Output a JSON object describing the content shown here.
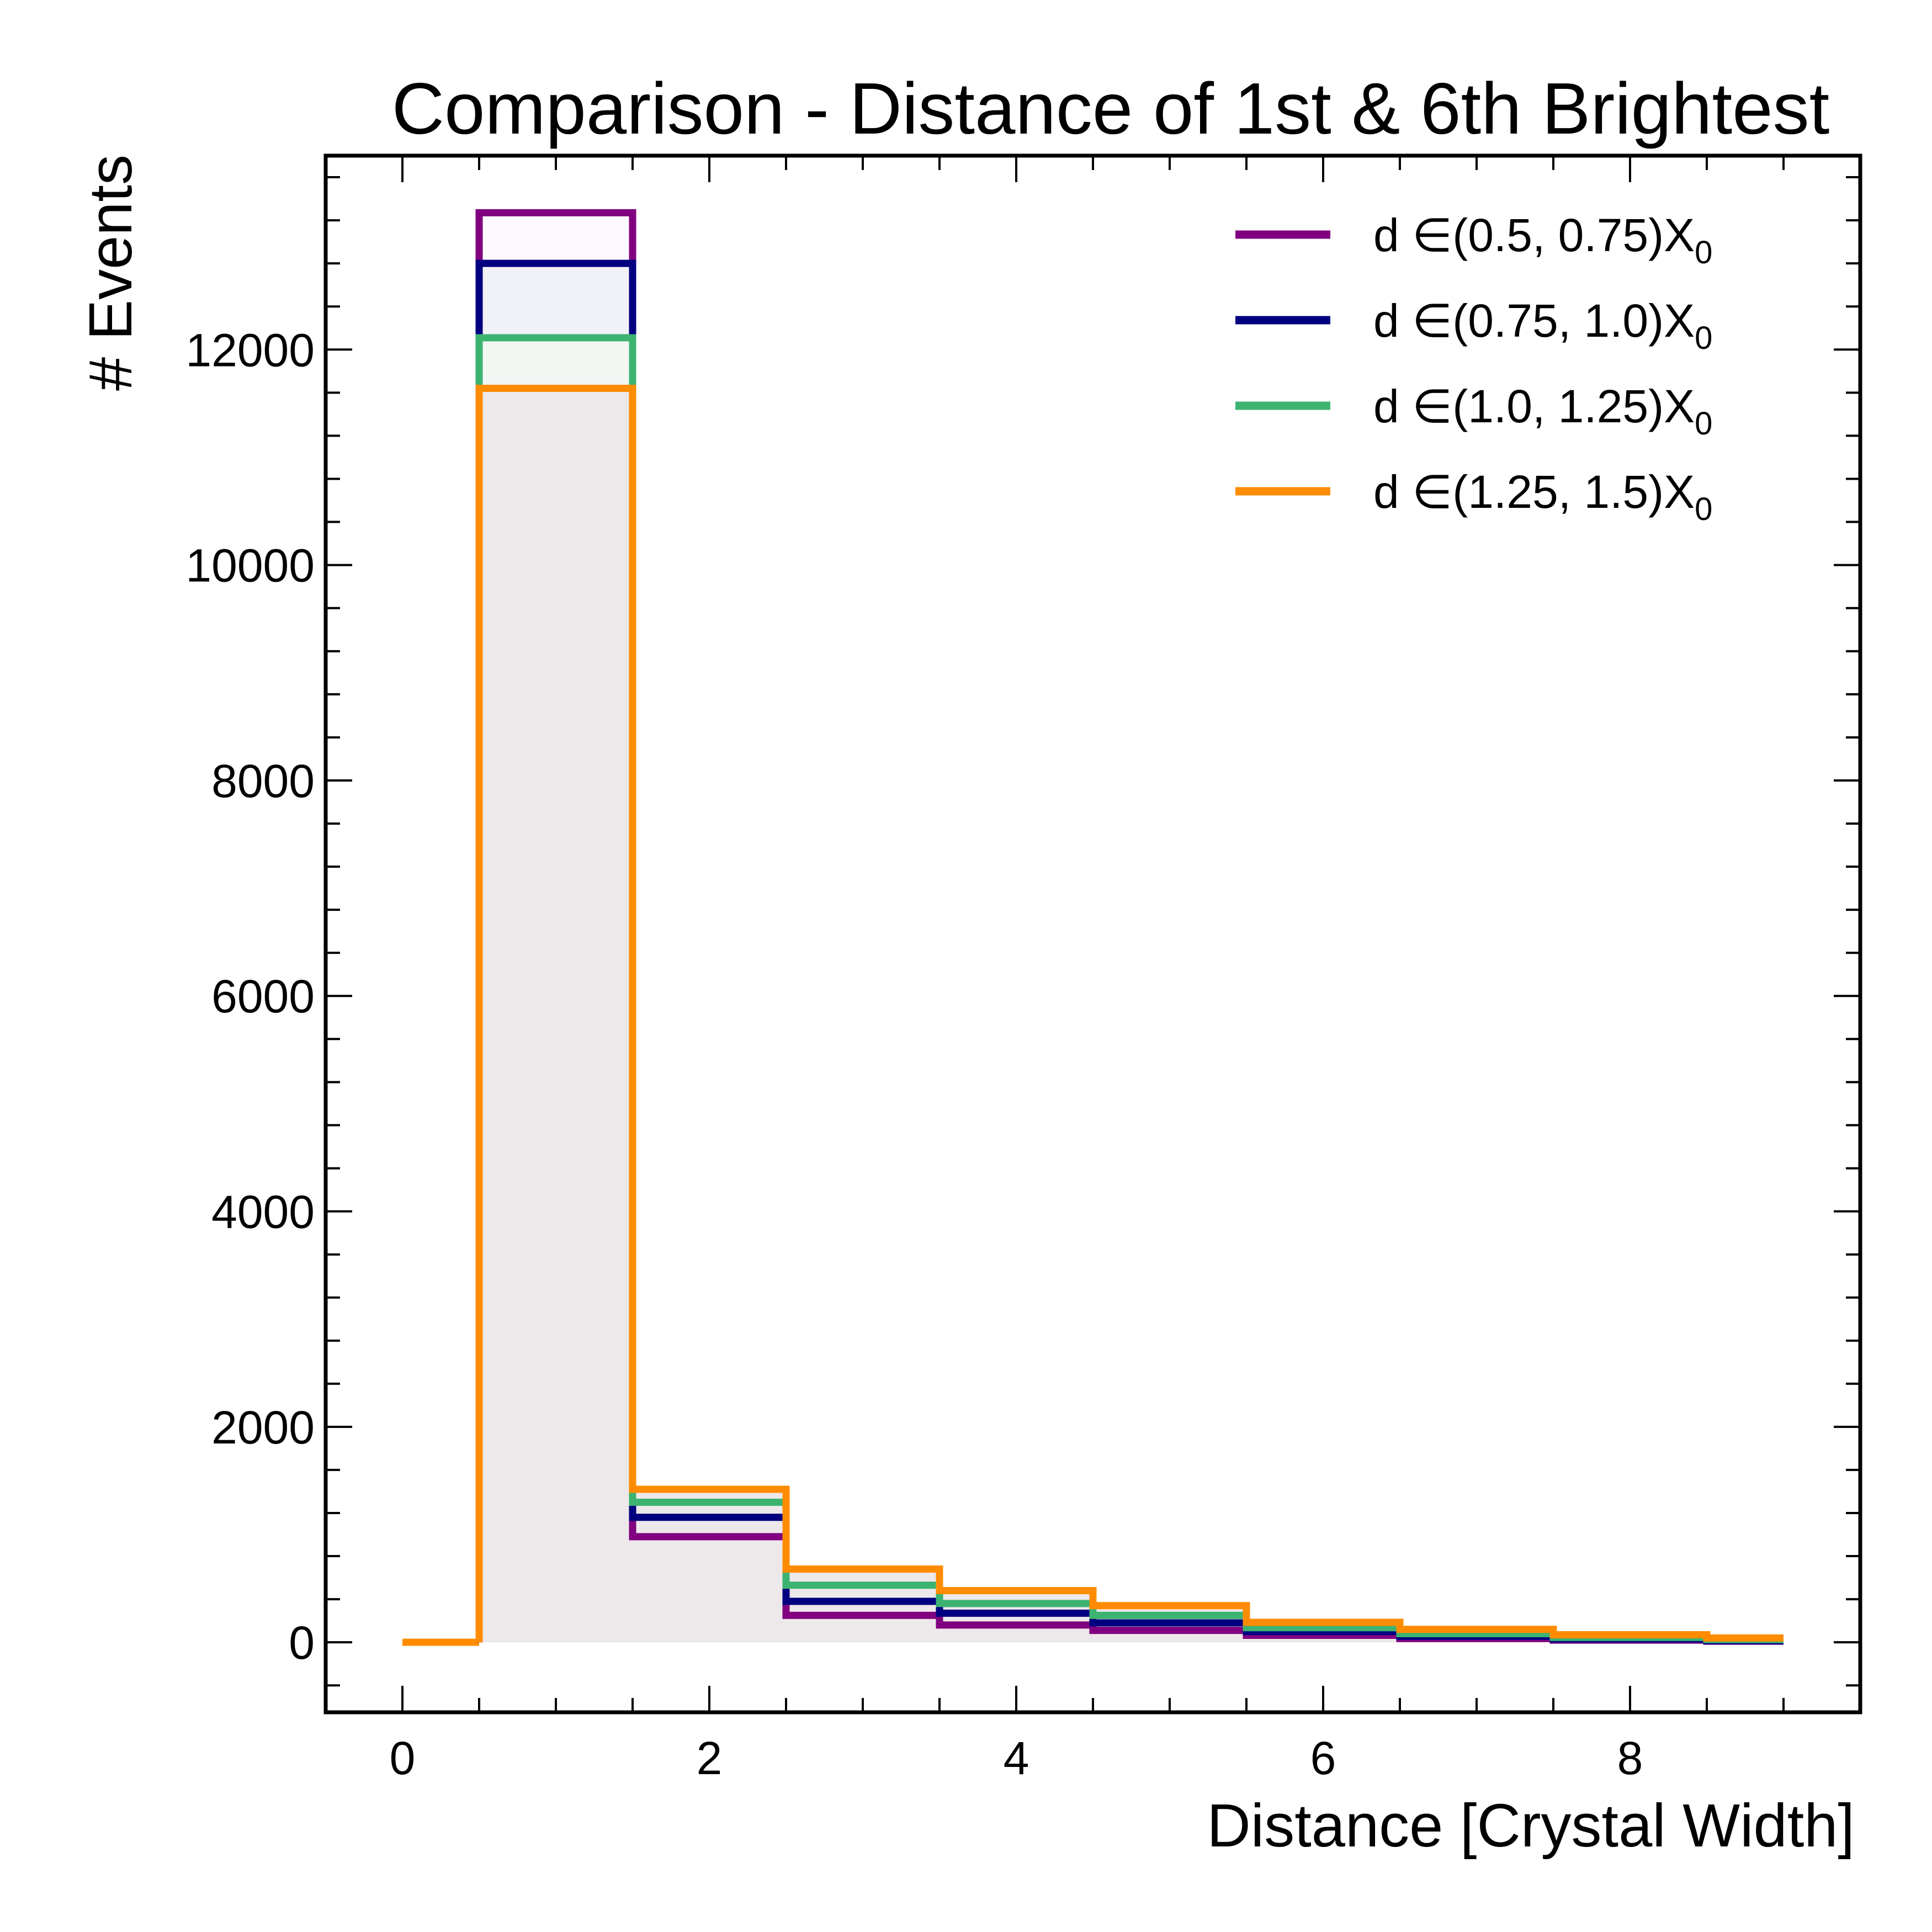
{
  "chart_data": {
    "type": "step",
    "title": "Comparison - Distance of 1st & 6th Brightest",
    "xlabel": "Distance [Crystal Width]",
    "ylabel": "# Events",
    "xlim": [
      -0.5,
      9.5
    ],
    "ylim": [
      -650,
      13800
    ],
    "x_ticks": [
      0,
      2,
      4,
      6,
      8
    ],
    "y_ticks": [
      0,
      2000,
      4000,
      6000,
      8000,
      10000,
      12000
    ],
    "grid": false,
    "legend_position": "top-right",
    "bin_edges": [
      0.5,
      1.5,
      2.5,
      3.5,
      4.5,
      5.5,
      6.5,
      7.5,
      8.5,
      9.0
    ],
    "baseline_segment": {
      "x": [
        0,
        0.5
      ],
      "y": 0
    },
    "series": [
      {
        "name": "d ∈(0.5, 0.75)X",
        "name_subscript": "0",
        "color": "#800080",
        "fill": "#fdf8fd",
        "values": [
          13270,
          980,
          250,
          160,
          110,
          65,
          35,
          20,
          10
        ]
      },
      {
        "name": "d ∈(0.75, 1.0)X",
        "name_subscript": "0",
        "color": "#000080",
        "fill": "#f1f1f8",
        "values": [
          12800,
          1160,
          380,
          270,
          180,
          100,
          55,
          30,
          15
        ]
      },
      {
        "name": "d ∈(1.0, 1.25)X",
        "name_subscript": "0",
        "color": "#3cb371",
        "fill": "#f2f7f3",
        "values": [
          12110,
          1300,
          530,
          360,
          250,
          135,
          80,
          45,
          25
        ]
      },
      {
        "name": "d ∈(1.25, 1.5)X",
        "name_subscript": "0",
        "color": "#ff8c00",
        "fill": "#ede8ea",
        "values": [
          11640,
          1420,
          680,
          480,
          340,
          185,
          120,
          70,
          40
        ]
      }
    ]
  }
}
